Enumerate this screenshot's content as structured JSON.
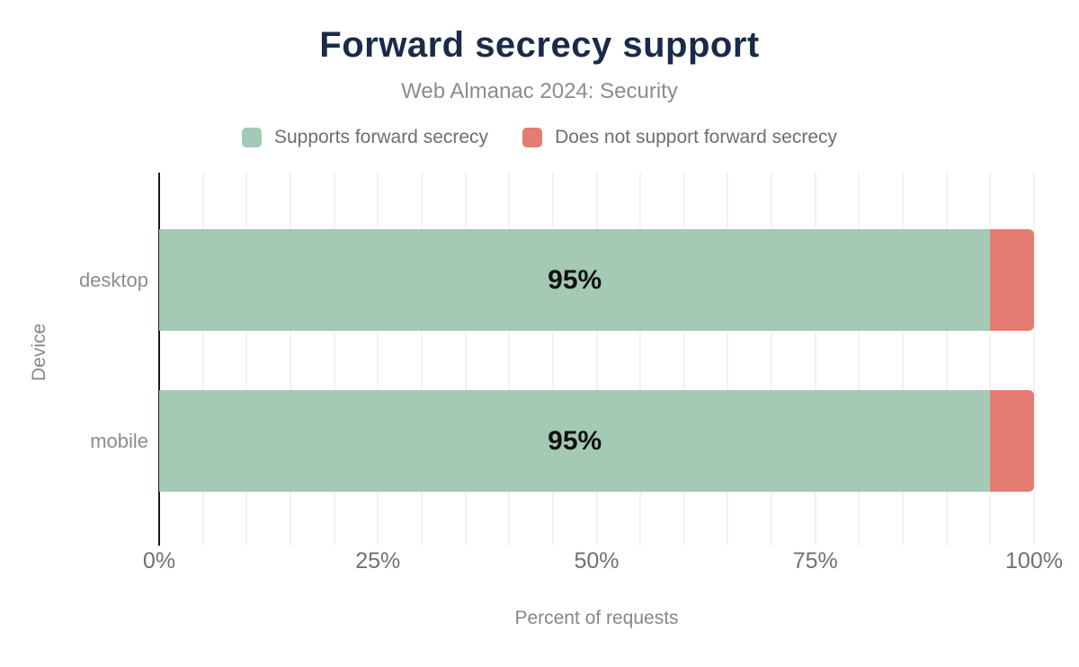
{
  "chart_data": {
    "type": "bar",
    "orientation": "horizontal",
    "stacked": true,
    "title": "Forward secrecy support",
    "subtitle": "Web Almanac 2024: Security",
    "categories": [
      "desktop",
      "mobile"
    ],
    "series": [
      {
        "name": "Supports forward secrecy",
        "color": "#a4c9b4",
        "values": [
          95,
          95
        ]
      },
      {
        "name": "Does not support forward secrecy",
        "color": "#e57c72",
        "values": [
          5,
          5
        ]
      }
    ],
    "bar_value_labels": [
      "95%",
      "95%"
    ],
    "xlabel": "Percent of requests",
    "ylabel": "Device",
    "xlim": [
      0,
      100
    ],
    "x_ticks": [
      {
        "value": 0,
        "label": "0%"
      },
      {
        "value": 25,
        "label": "25%"
      },
      {
        "value": 50,
        "label": "50%"
      },
      {
        "value": 75,
        "label": "75%"
      },
      {
        "value": 100,
        "label": "100%"
      }
    ],
    "grid": {
      "vertical_minor_step_pct": 5,
      "color": "#f2f2f2",
      "on": true
    },
    "legend_position": "top",
    "colors": {
      "title": "#1a2b49",
      "subtitle": "#8a8c8f",
      "legend_text": "#6c6e71",
      "category_text": "#8a8c8e",
      "tick_text": "#6d7175",
      "axis_title_text": "#85878a",
      "bar_label_text": "#111111",
      "axis_line": "#1b1b1b"
    }
  }
}
